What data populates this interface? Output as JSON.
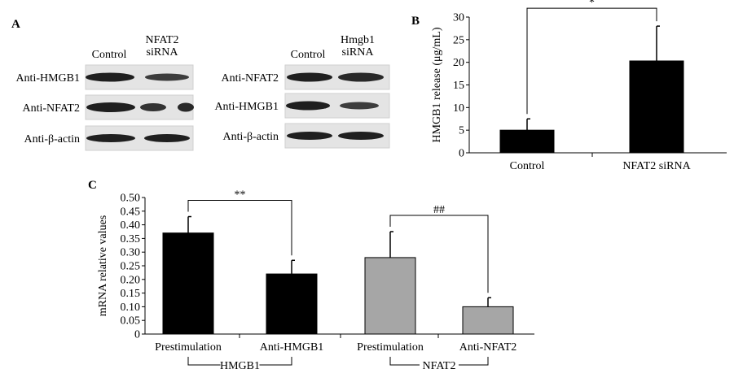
{
  "panel_a": {
    "letter": "A",
    "left_blot": {
      "col_headers": [
        "Control",
        "NFAT2\nsiRNA"
      ],
      "rows": [
        "Anti-HMGB1",
        "Anti-NFAT2",
        "Anti-β-actin"
      ]
    },
    "right_blot": {
      "col_headers": [
        "Control",
        "Hmgb1\nsiRNA"
      ],
      "rows": [
        "Anti-NFAT2",
        "Anti-HMGB1",
        "Anti-β-actin"
      ]
    }
  },
  "colors": {
    "bar_black": "#000000",
    "bar_gray": "#a6a6a6",
    "blot_bg": "#e4e4e4",
    "band": "#1f1f1f"
  },
  "chart_data": [
    {
      "panel": "B",
      "type": "bar",
      "categories": [
        "Control",
        "NFAT2 siRNA"
      ],
      "values": [
        5,
        20.3
      ],
      "errors": [
        2.5,
        7.7
      ],
      "ylabel": "HMGB1 release (μg/mL)",
      "ylim": [
        0,
        30
      ],
      "yticks": [
        "0",
        "5",
        "10",
        "15",
        "20",
        "25",
        "30"
      ],
      "bar_colors": [
        "#000000",
        "#000000"
      ],
      "annotations": [
        {
          "text": "*",
          "between": [
            0,
            1
          ]
        }
      ]
    },
    {
      "panel": "C",
      "type": "bar",
      "categories": [
        "Prestimulation",
        "Anti-HMGB1",
        "Prestimulation",
        "Anti-NFAT2"
      ],
      "values": [
        0.37,
        0.22,
        0.28,
        0.1
      ],
      "errors": [
        0.06,
        0.05,
        0.095,
        0.033
      ],
      "ylabel": "mRNA relative values",
      "ylim": [
        0,
        0.5
      ],
      "yticks": [
        "0",
        "0.05",
        "0.10",
        "0.15",
        "0.20",
        "0.25",
        "0.30",
        "0.35",
        "0.40",
        "0.45",
        "0.50"
      ],
      "bar_colors": [
        "#000000",
        "#000000",
        "#a6a6a6",
        "#a6a6a6"
      ],
      "groups": [
        {
          "name": "HMGB1",
          "members": [
            0,
            1
          ]
        },
        {
          "name": "NFAT2",
          "members": [
            2,
            3
          ]
        }
      ],
      "annotations": [
        {
          "text": "**",
          "between": [
            0,
            1
          ]
        },
        {
          "text": "##",
          "between": [
            2,
            3
          ]
        }
      ]
    }
  ]
}
